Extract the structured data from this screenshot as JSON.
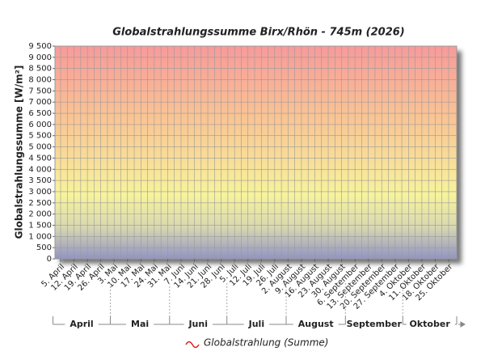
{
  "chart_data": {
    "type": "line",
    "title": "Globalstrahlungssumme Birx/Rhön - 745m (2026)",
    "y_label": "Globalstrahlungssumme [W/m²]",
    "categories": [
      "5. April",
      "12. April",
      "19. April",
      "26. April",
      "3. Mai",
      "10. Mai",
      "17. Mai",
      "24. Mai",
      "31. Mai",
      "7. Juni",
      "14. Juni",
      "21. Juni",
      "28. Juni",
      "5. Juli",
      "12. Juli",
      "19. Juli",
      "26. Juli",
      "2. August",
      "9. August",
      "16. August",
      "23. August",
      "30. August",
      "6. September",
      "13. September",
      "20. September",
      "27. September",
      "4. Oktober",
      "11. Oktober",
      "18. Oktober",
      "25. Oktober"
    ],
    "months": [
      "April",
      "Mai",
      "Juni",
      "Juli",
      "August",
      "September",
      "Oktober"
    ],
    "series": [
      {
        "name": "Globalstrahlung (Summe)",
        "color": "#e02020",
        "values": [
          null,
          null,
          null,
          null,
          null,
          null,
          null,
          null,
          null,
          null,
          null,
          null,
          null,
          null,
          null,
          null,
          null,
          null,
          null,
          null,
          null,
          null,
          null,
          null,
          null,
          null,
          null,
          null,
          null,
          null
        ]
      }
    ],
    "ylim": [
      0,
      9500
    ],
    "yticks": [
      0,
      {
        "value": 500,
        "label": "500"
      },
      {
        "value": 1000,
        "label": "1 000"
      },
      {
        "value": 1500,
        "label": "1 500"
      },
      {
        "value": 2000,
        "label": "2 000"
      },
      {
        "value": 2500,
        "label": "2 500"
      },
      {
        "value": 3000,
        "label": "3 000"
      },
      {
        "value": 3500,
        "label": "3 500"
      },
      {
        "value": 4000,
        "label": "4 000"
      },
      {
        "value": 4500,
        "label": "4 500"
      },
      {
        "value": 5000,
        "label": "5 000"
      },
      {
        "value": 5500,
        "label": "5 500"
      },
      {
        "value": 6000,
        "label": "6 000"
      },
      {
        "value": 6500,
        "label": "6 500"
      },
      {
        "value": 7000,
        "label": "7 000"
      },
      {
        "value": 7500,
        "label": "7 500"
      },
      {
        "value": 8000,
        "label": "8 000"
      },
      {
        "value": 8500,
        "label": "8 500"
      },
      {
        "value": 9000,
        "label": "9 000"
      },
      {
        "value": 9500,
        "label": "9 500"
      }
    ],
    "grid": true
  }
}
